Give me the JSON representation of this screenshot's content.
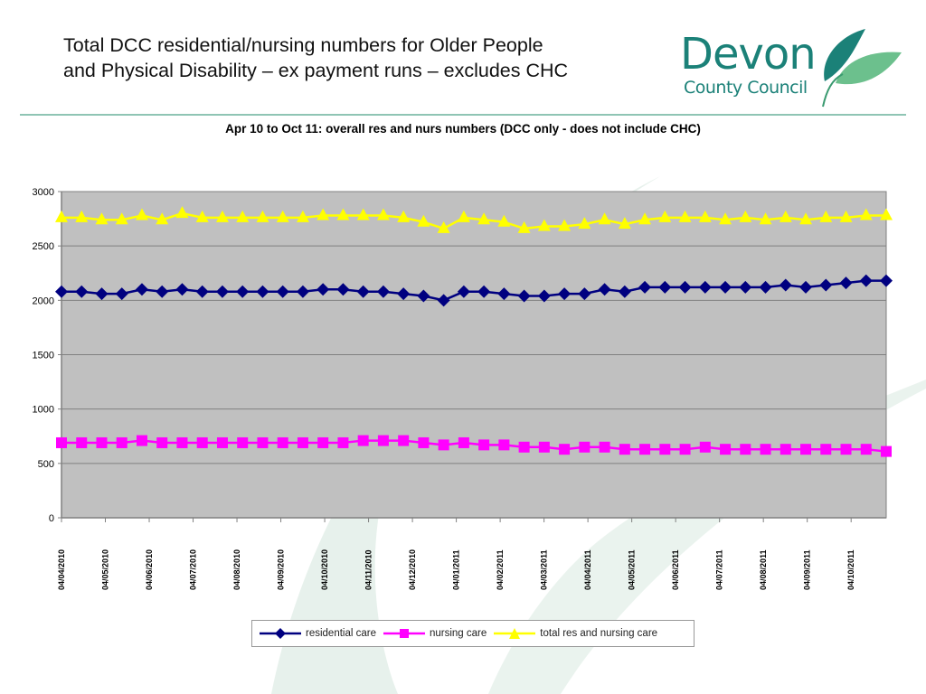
{
  "slide": {
    "title_line1": "Total DCC residential/nursing numbers for Older People",
    "title_line2": "and Physical Disability – ex payment runs – excludes CHC"
  },
  "logo": {
    "name": "Devon",
    "subtitle": "County Council",
    "icon": "leaf-icon",
    "color": "#1b8178"
  },
  "chart_data": {
    "type": "line",
    "title": "Apr 10 to Oct 11: overall res and nurs numbers (DCC only - does not include CHC)",
    "xlabel": "",
    "ylabel": "",
    "ylim": [
      0,
      3000
    ],
    "yticks": [
      0,
      500,
      1000,
      1500,
      2000,
      2500,
      3000
    ],
    "grid": true,
    "plot_background": "#c0c0c0",
    "legend_position": "bottom",
    "x_tick_labels": [
      "04/04/2010",
      "04/05/2010",
      "04/06/2010",
      "04/07/2010",
      "04/08/2010",
      "04/09/2010",
      "04/10/2010",
      "04/11/2010",
      "04/12/2010",
      "04/01/2011",
      "04/02/2011",
      "04/03/2011",
      "04/04/2011",
      "04/05/2011",
      "04/06/2011",
      "04/07/2011",
      "04/08/2011",
      "04/09/2011",
      "04/10/2011"
    ],
    "point_count": 42,
    "series": [
      {
        "name": "residential care",
        "color": "#000080",
        "marker": "diamond",
        "values": [
          2080,
          2080,
          2060,
          2060,
          2100,
          2080,
          2100,
          2080,
          2080,
          2080,
          2080,
          2080,
          2080,
          2100,
          2100,
          2080,
          2080,
          2060,
          2040,
          2000,
          2080,
          2080,
          2060,
          2040,
          2040,
          2060,
          2060,
          2100,
          2080,
          2120,
          2120,
          2120,
          2120,
          2120,
          2120,
          2120,
          2140,
          2120,
          2140,
          2160,
          2180,
          2180
        ]
      },
      {
        "name": "nursing care",
        "color": "#ff00ff",
        "marker": "square",
        "values": [
          690,
          690,
          690,
          690,
          710,
          690,
          690,
          690,
          690,
          690,
          690,
          690,
          690,
          690,
          690,
          710,
          710,
          710,
          690,
          670,
          690,
          670,
          670,
          650,
          650,
          630,
          650,
          650,
          630,
          630,
          630,
          630,
          650,
          630,
          630,
          630,
          630,
          630,
          630,
          630,
          630,
          610
        ]
      },
      {
        "name": "total res and nursing care",
        "color": "#ffff00",
        "marker": "triangle",
        "values": [
          2760,
          2760,
          2740,
          2740,
          2780,
          2740,
          2800,
          2760,
          2760,
          2760,
          2760,
          2760,
          2760,
          2780,
          2780,
          2780,
          2780,
          2760,
          2720,
          2660,
          2760,
          2740,
          2720,
          2660,
          2680,
          2680,
          2700,
          2740,
          2700,
          2740,
          2760,
          2760,
          2760,
          2740,
          2760,
          2740,
          2760,
          2740,
          2760,
          2760,
          2780,
          2780
        ]
      }
    ]
  }
}
